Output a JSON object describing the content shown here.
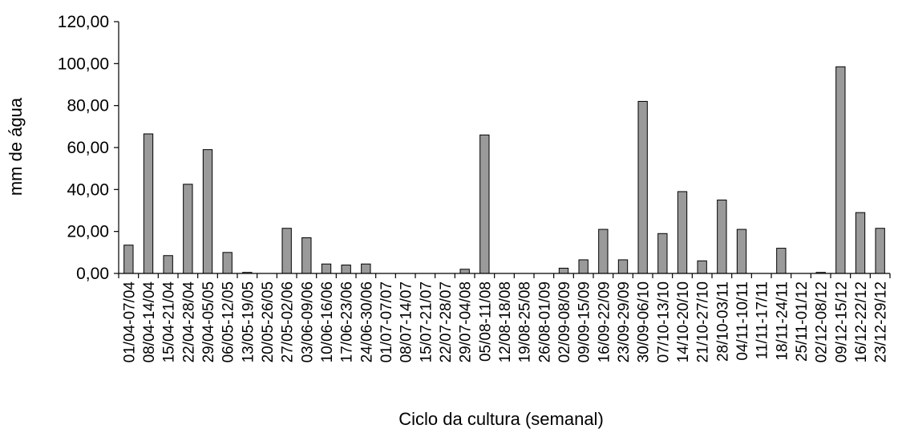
{
  "chart_data": {
    "type": "bar",
    "xlabel": "Ciclo da cultura (semanal)",
    "ylabel": "mm de água",
    "ylim": [
      0,
      120
    ],
    "yticks": [
      "0,00",
      "20,00",
      "40,00",
      "60,00",
      "80,00",
      "100,00",
      "120,00"
    ],
    "grid": false,
    "bar_fill": "#9a9a9a",
    "bar_stroke": "#000000",
    "categories": [
      "01/04-07/04",
      "08/04-14/04",
      "15/04-21/04",
      "22/04-28/04",
      "29/04-05/05",
      "06/05-12/05",
      "13/05-19/05",
      "20/05-26/05",
      "27/05-02/06",
      "03/06-09/06",
      "10/06-16/06",
      "17/06-23/06",
      "24/06-30/06",
      "01/07-07/07",
      "08/07-14/07",
      "15/07-21/07",
      "22/07-28/07",
      "29/07-04/08",
      "05/08-11/08",
      "12/08-18/08",
      "19/08-25/08",
      "26/08-01/09",
      "02/09-08/09",
      "09/09-15/09",
      "16/09-22/09",
      "23/09-29/09",
      "30/09-06/10",
      "07/10-13/10",
      "14/10-20/10",
      "21/10-27/10",
      "28/10-03/11",
      "04/11-10/11",
      "11/11-17/11",
      "18/11-24/11",
      "25/11-01/12",
      "02/12-08/12",
      "09/12-15/12",
      "16/12-22/12",
      "23/12-29/12"
    ],
    "values": [
      13.5,
      66.5,
      8.5,
      42.5,
      59.0,
      10.0,
      0.5,
      0.0,
      21.5,
      17.0,
      4.5,
      4.0,
      4.5,
      0.0,
      0.0,
      0.0,
      0.0,
      2.0,
      66.0,
      0.0,
      0.0,
      0.0,
      2.5,
      6.5,
      21.0,
      6.5,
      82.0,
      19.0,
      39.0,
      6.0,
      35.0,
      21.0,
      0.0,
      12.0,
      0.0,
      0.5,
      98.5,
      29.0,
      21.5
    ]
  }
}
